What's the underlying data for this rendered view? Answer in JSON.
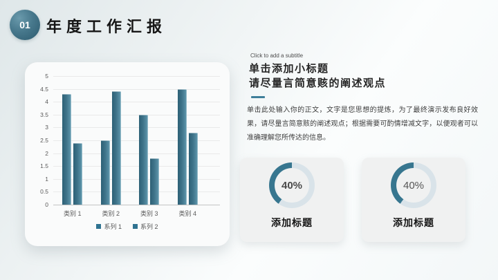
{
  "header": {
    "badge": "01",
    "title": "年度工作汇报"
  },
  "right_panel": {
    "hint": "Click to add a subtitle",
    "heading_line1": "单击添加小标题",
    "heading_line2": "请尽量言简意赅的阐述观点",
    "body": "单击此处输入你的正文，文字是您思想的提炼，为了最终演示发布良好效果，请尽量言简意赅的阐述观点；根据需要可酌情增减文字，以便观者可以准确理解您所传达的信息。"
  },
  "stat_cards": [
    {
      "value": 40,
      "percent_label": "40%",
      "title": "添加标题"
    },
    {
      "value": 40,
      "percent_label": "40%",
      "title": "添加标题"
    }
  ],
  "chart_data": {
    "type": "bar",
    "title": "",
    "categories": [
      "类别 1",
      "类别 2",
      "类别 3",
      "类别 4"
    ],
    "series": [
      {
        "name": "系列 1",
        "values": [
          4.3,
          2.5,
          3.5,
          4.5
        ]
      },
      {
        "name": "系列 2",
        "values": [
          2.4,
          4.4,
          1.8,
          2.8
        ]
      }
    ],
    "xlabel": "",
    "ylabel": "",
    "ylim": [
      0,
      5
    ],
    "ytick_step": 0.5,
    "grid": true,
    "legend_position": "bottom"
  },
  "colors": {
    "accent": "#37768f",
    "bar_gradient_dark": "#2d6076",
    "bar_gradient_light": "#69a0b4",
    "donut_track": "#d9e3e9",
    "badge": "#47788c"
  }
}
